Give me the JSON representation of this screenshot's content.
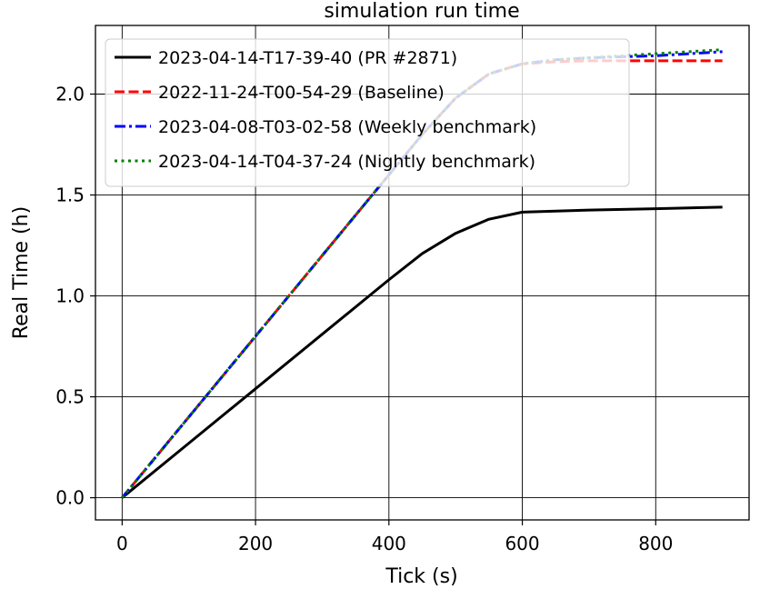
{
  "chart_data": {
    "type": "line",
    "title": "simulation run time",
    "xlabel": "Tick (s)",
    "ylabel": "Real Time (h)",
    "xlim": [
      -40,
      940
    ],
    "ylim": [
      -0.11,
      2.34
    ],
    "xticks": [
      0,
      200,
      400,
      600,
      800
    ],
    "xtick_labels": [
      "0",
      "200",
      "400",
      "600",
      "800"
    ],
    "yticks": [
      0.0,
      0.5,
      1.0,
      1.5,
      2.0
    ],
    "ytick_labels": [
      "0.0",
      "0.5",
      "1.0",
      "1.5",
      "2.0"
    ],
    "grid": true,
    "legend_position": "top-left",
    "series": [
      {
        "name": "2023-04-14-T17-39-40 (PR #2871)",
        "color": "#000000",
        "style": "solid",
        "x": [
          0,
          100,
          200,
          300,
          400,
          450,
          500,
          550,
          600,
          650,
          700,
          800,
          900
        ],
        "y": [
          0.0,
          0.27,
          0.54,
          0.81,
          1.08,
          1.21,
          1.31,
          1.38,
          1.415,
          1.42,
          1.425,
          1.432,
          1.44
        ]
      },
      {
        "name": "2022-11-24-T00-54-29 (Baseline)",
        "color": "#ff0000",
        "style": "dashed",
        "x": [
          0,
          100,
          200,
          300,
          400,
          450,
          500,
          550,
          600,
          650,
          700,
          800,
          900
        ],
        "y": [
          0.0,
          0.4,
          0.8,
          1.2,
          1.6,
          1.8,
          1.98,
          2.1,
          2.15,
          2.16,
          2.165,
          2.165,
          2.165
        ]
      },
      {
        "name": "2023-04-08-T03-02-58 (Weekly benchmark)",
        "color": "#0000ff",
        "style": "dashdot",
        "x": [
          0,
          100,
          200,
          300,
          400,
          450,
          500,
          550,
          600,
          650,
          700,
          800,
          900
        ],
        "y": [
          0.0,
          0.4,
          0.8,
          1.2,
          1.6,
          1.8,
          1.98,
          2.1,
          2.15,
          2.17,
          2.18,
          2.19,
          2.21
        ]
      },
      {
        "name": "2023-04-14-T04-37-24 (Nightly benchmark)",
        "color": "#008000",
        "style": "dotted",
        "x": [
          0,
          100,
          200,
          300,
          400,
          450,
          500,
          550,
          600,
          650,
          700,
          800,
          900
        ],
        "y": [
          0.0,
          0.4,
          0.8,
          1.2,
          1.6,
          1.8,
          1.98,
          2.1,
          2.15,
          2.17,
          2.18,
          2.2,
          2.22
        ]
      }
    ]
  }
}
